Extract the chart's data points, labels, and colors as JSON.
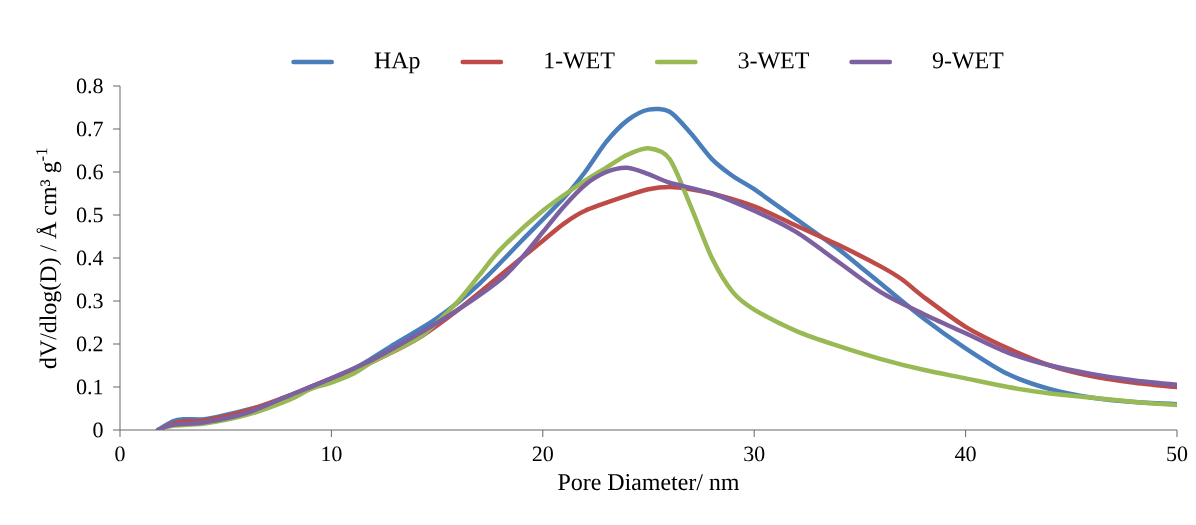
{
  "chart_data": {
    "type": "line",
    "xlabel": "Pore Diameter/ nm",
    "ylabel": "dV/dlog(D) / Å cm³ g$^{-1}$",
    "xlim": [
      0,
      50
    ],
    "xticks": [
      0,
      10,
      20,
      30,
      40,
      50
    ],
    "ylim": [
      0,
      0.8
    ],
    "yticks": [
      0,
      0.1,
      0.2,
      0.3,
      0.4,
      0.5,
      0.6,
      0.7,
      0.8
    ],
    "grid": false,
    "legend": "top",
    "marker": "none",
    "line_style": "solid",
    "series": [
      {
        "name": "HAp",
        "color": "#4a7ebb",
        "x": [
          1.8,
          2.5,
          3,
          4,
          5,
          7,
          9,
          11,
          13,
          15,
          17,
          19,
          21,
          22,
          23,
          24,
          25,
          26,
          27,
          28,
          29,
          30,
          32,
          34,
          35,
          36,
          38,
          40,
          42,
          44,
          46,
          48,
          50
        ],
        "values": [
          0,
          0.02,
          0.025,
          0.025,
          0.035,
          0.06,
          0.1,
          0.14,
          0.2,
          0.26,
          0.34,
          0.44,
          0.54,
          0.6,
          0.67,
          0.72,
          0.745,
          0.74,
          0.69,
          0.63,
          0.59,
          0.56,
          0.49,
          0.42,
          0.38,
          0.34,
          0.26,
          0.19,
          0.13,
          0.095,
          0.075,
          0.065,
          0.06
        ]
      },
      {
        "name": "1-WET",
        "color": "#be4b48",
        "x": [
          1.8,
          2.5,
          3,
          4,
          6,
          8,
          10,
          11,
          12,
          14,
          16,
          18,
          20,
          21,
          22,
          24,
          25,
          26,
          27,
          28,
          30,
          32,
          34,
          36,
          37,
          38,
          40,
          42,
          44,
          46,
          48,
          50
        ],
        "values": [
          0,
          0.015,
          0.02,
          0.022,
          0.045,
          0.08,
          0.12,
          0.14,
          0.16,
          0.21,
          0.28,
          0.36,
          0.44,
          0.48,
          0.51,
          0.545,
          0.56,
          0.565,
          0.56,
          0.55,
          0.52,
          0.475,
          0.43,
          0.38,
          0.35,
          0.31,
          0.24,
          0.19,
          0.15,
          0.125,
          0.11,
          0.1
        ]
      },
      {
        "name": "3-WET",
        "color": "#98b954",
        "x": [
          1.8,
          2.5,
          4,
          6,
          8,
          9,
          10,
          11,
          12,
          14,
          15,
          16,
          17,
          18,
          20,
          22,
          23,
          24,
          25,
          26,
          27,
          28,
          29,
          30,
          32,
          34,
          36,
          38,
          40,
          42,
          44,
          46,
          48,
          50
        ],
        "values": [
          0,
          0.01,
          0.015,
          0.035,
          0.07,
          0.095,
          0.11,
          0.13,
          0.16,
          0.21,
          0.25,
          0.3,
          0.36,
          0.42,
          0.51,
          0.58,
          0.61,
          0.64,
          0.655,
          0.63,
          0.52,
          0.4,
          0.32,
          0.28,
          0.23,
          0.195,
          0.165,
          0.14,
          0.12,
          0.1,
          0.085,
          0.075,
          0.065,
          0.058
        ]
      },
      {
        "name": "9-WET",
        "color": "#7d60a0",
        "x": [
          1.8,
          2.5,
          4,
          6,
          8,
          10,
          12,
          14,
          16,
          18,
          19,
          20,
          21,
          22,
          23,
          24,
          25,
          26,
          28,
          30,
          32,
          34,
          36,
          38,
          40,
          42,
          44,
          46,
          48,
          50
        ],
        "values": [
          0,
          0.012,
          0.018,
          0.04,
          0.08,
          0.12,
          0.165,
          0.22,
          0.28,
          0.35,
          0.4,
          0.46,
          0.52,
          0.57,
          0.6,
          0.61,
          0.595,
          0.575,
          0.55,
          0.51,
          0.46,
          0.39,
          0.32,
          0.27,
          0.225,
          0.18,
          0.15,
          0.13,
          0.115,
          0.105
        ]
      }
    ]
  }
}
